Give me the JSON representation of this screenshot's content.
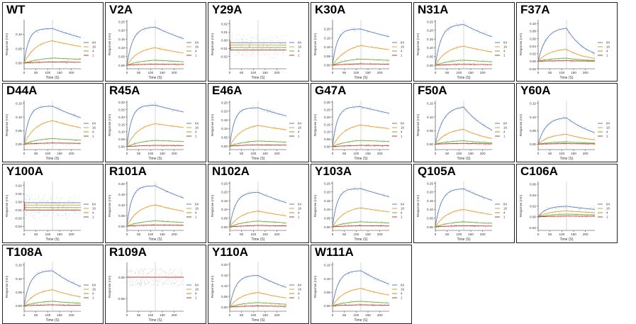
{
  "legend_labels": [
    "64",
    "16",
    "4",
    "1"
  ],
  "x_label": "Time (S)",
  "y_label": "Response (nm)",
  "x_ticks": [
    "0",
    "50",
    "100",
    "150",
    "200"
  ],
  "colors": {
    "c64": "#5b7fbf",
    "c16": "#e0a030",
    "c4": "#6fae3c",
    "c1": "#c0392b",
    "noise": "#999999"
  },
  "chart_data": [
    {
      "type": "line",
      "title": "WT",
      "ylim": [
        -0.02,
        0.15
      ],
      "yticks": [
        "0.00",
        "0.05",
        "0.10"
      ],
      "series": [
        {
          "name": "64",
          "plateau": 0.12,
          "kon": 0.05,
          "koff": 0.0025
        },
        {
          "name": "16",
          "plateau": 0.085,
          "kon": 0.02,
          "koff": 0.0025
        },
        {
          "name": "4",
          "plateau": 0.025,
          "kon": 0.01,
          "koff": 0.0025
        },
        {
          "name": "1",
          "plateau": 0.005,
          "kon": 0.01,
          "koff": 0.0025
        }
      ],
      "xlim": [
        0,
        240
      ]
    },
    {
      "type": "line",
      "title": "V2A",
      "ylim": [
        -0.02,
        0.26
      ],
      "yticks": [
        "0.00",
        "0.05",
        "0.10",
        "0.15",
        "0.20",
        "0.25"
      ],
      "series": [
        {
          "name": "64",
          "plateau": 0.22,
          "kon": 0.04,
          "koff": 0.003
        },
        {
          "name": "16",
          "plateau": 0.11,
          "kon": 0.02,
          "koff": 0.003
        },
        {
          "name": "4",
          "plateau": 0.035,
          "kon": 0.015,
          "koff": 0.003
        },
        {
          "name": "1",
          "plateau": 0.01,
          "kon": 0.01,
          "koff": 0.003
        }
      ],
      "xlim": [
        0,
        240
      ]
    },
    {
      "type": "line",
      "title": "Y29A",
      "ylim": [
        -0.035,
        0.025
      ],
      "yticks": [
        "-0.02",
        "-0.01",
        "0.00",
        "0.01",
        "0.02"
      ],
      "series": [
        {
          "name": "64",
          "plateau": -0.003,
          "kon": 1,
          "koff": 0
        },
        {
          "name": "16",
          "plateau": -0.006,
          "kon": 1,
          "koff": 0
        },
        {
          "name": "4",
          "plateau": -0.009,
          "kon": 1,
          "koff": 0
        },
        {
          "name": "1",
          "plateau": -0.012,
          "kon": 1,
          "koff": 0
        }
      ],
      "xlim": [
        0,
        240
      ]
    },
    {
      "type": "line",
      "title": "K30A",
      "ylim": [
        -0.02,
        0.25
      ],
      "yticks": [
        "0.00",
        "0.05",
        "0.10",
        "0.15",
        "0.20"
      ],
      "series": [
        {
          "name": "64",
          "plateau": 0.2,
          "kon": 0.05,
          "koff": 0.002
        },
        {
          "name": "16",
          "plateau": 0.13,
          "kon": 0.015,
          "koff": 0.002
        },
        {
          "name": "4",
          "plateau": 0.04,
          "kon": 0.015,
          "koff": 0.002
        },
        {
          "name": "1",
          "plateau": 0.01,
          "kon": 0.01,
          "koff": 0.002
        }
      ],
      "xlim": [
        0,
        240
      ]
    },
    {
      "type": "line",
      "title": "N31A",
      "ylim": [
        -0.02,
        0.26
      ],
      "yticks": [
        "0.00",
        "0.05",
        "0.10",
        "0.15",
        "0.20",
        "0.25"
      ],
      "series": [
        {
          "name": "64",
          "plateau": 0.235,
          "kon": 0.04,
          "koff": 0.003
        },
        {
          "name": "16",
          "plateau": 0.12,
          "kon": 0.02,
          "koff": 0.003
        },
        {
          "name": "4",
          "plateau": 0.035,
          "kon": 0.015,
          "koff": 0.003
        },
        {
          "name": "1",
          "plateau": 0.008,
          "kon": 0.01,
          "koff": 0.003
        }
      ],
      "xlim": [
        0,
        240
      ]
    },
    {
      "type": "line",
      "title": "F37A",
      "ylim": [
        -0.02,
        0.11
      ],
      "yticks": [
        "-0.02",
        "0.00",
        "0.02",
        "0.04",
        "0.06",
        "0.08",
        "0.10"
      ],
      "series": [
        {
          "name": "64",
          "plateau": 0.09,
          "kon": 0.03,
          "koff": 0.012
        },
        {
          "name": "16",
          "plateau": 0.035,
          "kon": 0.02,
          "koff": 0.012
        },
        {
          "name": "4",
          "plateau": 0.01,
          "kon": 0.015,
          "koff": 0.012
        },
        {
          "name": "1",
          "plateau": 0.002,
          "kon": 0.01,
          "koff": 0.012
        }
      ],
      "xlim": [
        0,
        240
      ]
    },
    {
      "type": "line",
      "title": "D44A",
      "ylim": [
        -0.02,
        0.16
      ],
      "yticks": [
        "0.00",
        "0.05",
        "0.10",
        "0.15"
      ],
      "series": [
        {
          "name": "64",
          "plateau": 0.14,
          "kon": 0.05,
          "koff": 0.003
        },
        {
          "name": "16",
          "plateau": 0.095,
          "kon": 0.02,
          "koff": 0.003
        },
        {
          "name": "4",
          "plateau": 0.025,
          "kon": 0.015,
          "koff": 0.003
        },
        {
          "name": "1",
          "plateau": 0.006,
          "kon": 0.01,
          "koff": 0.003
        }
      ],
      "xlim": [
        0,
        240
      ]
    },
    {
      "type": "line",
      "title": "R45A",
      "ylim": [
        -0.02,
        0.31
      ],
      "yticks": [
        "0.00",
        "0.05",
        "0.10",
        "0.15",
        "0.20",
        "0.25",
        "0.30"
      ],
      "series": [
        {
          "name": "64",
          "plateau": 0.28,
          "kon": 0.05,
          "koff": 0.0015
        },
        {
          "name": "16",
          "plateau": 0.17,
          "kon": 0.02,
          "koff": 0.0015
        },
        {
          "name": "4",
          "plateau": 0.05,
          "kon": 0.015,
          "koff": 0.0015
        },
        {
          "name": "1",
          "plateau": 0.012,
          "kon": 0.01,
          "koff": 0.0015
        }
      ],
      "xlim": [
        0,
        240
      ]
    },
    {
      "type": "line",
      "title": "E46A",
      "ylim": [
        -0.02,
        0.26
      ],
      "yticks": [
        "0.00",
        "0.05",
        "0.10",
        "0.15",
        "0.20",
        "0.25"
      ],
      "series": [
        {
          "name": "64",
          "plateau": 0.22,
          "kon": 0.05,
          "koff": 0.002
        },
        {
          "name": "16",
          "plateau": 0.13,
          "kon": 0.02,
          "koff": 0.002
        },
        {
          "name": "4",
          "plateau": 0.035,
          "kon": 0.015,
          "koff": 0.002
        },
        {
          "name": "1",
          "plateau": 0.01,
          "kon": 0.01,
          "koff": 0.002
        }
      ],
      "xlim": [
        0,
        240
      ]
    },
    {
      "type": "line",
      "title": "G47A",
      "ylim": [
        -0.02,
        0.31
      ],
      "yticks": [
        "0.00",
        "0.05",
        "0.10",
        "0.15",
        "0.20",
        "0.25",
        "0.30"
      ],
      "series": [
        {
          "name": "64",
          "plateau": 0.27,
          "kon": 0.05,
          "koff": 0.0015
        },
        {
          "name": "16",
          "plateau": 0.16,
          "kon": 0.02,
          "koff": 0.0015
        },
        {
          "name": "4",
          "plateau": 0.05,
          "kon": 0.015,
          "koff": 0.0015
        },
        {
          "name": "1",
          "plateau": 0.012,
          "kon": 0.01,
          "koff": 0.0015
        }
      ],
      "xlim": [
        0,
        240
      ]
    },
    {
      "type": "line",
      "title": "F50A",
      "ylim": [
        -0.02,
        0.16
      ],
      "yticks": [
        "0.00",
        "0.05",
        "0.10",
        "0.15"
      ],
      "series": [
        {
          "name": "64",
          "plateau": 0.14,
          "kon": 0.03,
          "koff": 0.008
        },
        {
          "name": "16",
          "plateau": 0.06,
          "kon": 0.02,
          "koff": 0.008
        },
        {
          "name": "4",
          "plateau": 0.015,
          "kon": 0.015,
          "koff": 0.008
        },
        {
          "name": "1",
          "plateau": 0.004,
          "kon": 0.01,
          "koff": 0.008
        }
      ],
      "xlim": [
        0,
        240
      ]
    },
    {
      "type": "line",
      "title": "Y60A",
      "ylim": [
        -0.02,
        0.16
      ],
      "yticks": [
        "0.00",
        "0.05",
        "0.10",
        "0.15"
      ],
      "series": [
        {
          "name": "64",
          "plateau": 0.1,
          "kon": 0.03,
          "koff": 0.007
        },
        {
          "name": "16",
          "plateau": 0.04,
          "kon": 0.02,
          "koff": 0.007
        },
        {
          "name": "4",
          "plateau": 0.01,
          "kon": 0.015,
          "koff": 0.007
        },
        {
          "name": "1",
          "plateau": 0.003,
          "kon": 0.01,
          "koff": 0.007
        }
      ],
      "xlim": [
        0,
        240
      ]
    },
    {
      "type": "line",
      "title": "Y100A",
      "ylim": [
        -0.035,
        0.025
      ],
      "yticks": [
        "-0.03",
        "-0.02",
        "-0.01",
        "0.00",
        "0.01",
        "0.02"
      ],
      "series": [
        {
          "name": "64",
          "plateau": -0.001,
          "kon": 1,
          "koff": 0
        },
        {
          "name": "16",
          "plateau": -0.004,
          "kon": 1,
          "koff": 0
        },
        {
          "name": "4",
          "plateau": -0.007,
          "kon": 1,
          "koff": 0
        },
        {
          "name": "1",
          "plateau": -0.01,
          "kon": 1,
          "koff": 0
        }
      ],
      "xlim": [
        0,
        240
      ]
    },
    {
      "type": "line",
      "title": "R101A",
      "ylim": [
        -0.02,
        0.21
      ],
      "yticks": [
        "0.00",
        "0.05",
        "0.10",
        "0.15",
        "0.20"
      ],
      "series": [
        {
          "name": "64",
          "plateau": 0.19,
          "kon": 0.05,
          "koff": 0.003
        },
        {
          "name": "16",
          "plateau": 0.11,
          "kon": 0.02,
          "koff": 0.003
        },
        {
          "name": "4",
          "plateau": 0.03,
          "kon": 0.015,
          "koff": 0.003
        },
        {
          "name": "1",
          "plateau": 0.008,
          "kon": 0.01,
          "koff": 0.003
        }
      ],
      "xlim": [
        0,
        240
      ]
    },
    {
      "type": "line",
      "title": "N102A",
      "ylim": [
        -0.02,
        0.26
      ],
      "yticks": [
        "0.00",
        "0.05",
        "0.10",
        "0.15",
        "0.20",
        "0.25"
      ],
      "series": [
        {
          "name": "64",
          "plateau": 0.2,
          "kon": 0.04,
          "koff": 0.003
        },
        {
          "name": "16",
          "plateau": 0.1,
          "kon": 0.02,
          "koff": 0.003
        },
        {
          "name": "4",
          "plateau": 0.04,
          "kon": 0.015,
          "koff": 0.003
        },
        {
          "name": "1",
          "plateau": 0.012,
          "kon": 0.01,
          "koff": 0.003
        }
      ],
      "xlim": [
        0,
        240
      ]
    },
    {
      "type": "line",
      "title": "Y103A",
      "ylim": [
        -0.02,
        0.26
      ],
      "yticks": [
        "0.00",
        "0.05",
        "0.10",
        "0.15",
        "0.20",
        "0.25"
      ],
      "series": [
        {
          "name": "64",
          "plateau": 0.22,
          "kon": 0.05,
          "koff": 0.002
        },
        {
          "name": "16",
          "plateau": 0.12,
          "kon": 0.02,
          "koff": 0.002
        },
        {
          "name": "4",
          "plateau": 0.035,
          "kon": 0.015,
          "koff": 0.002
        },
        {
          "name": "1",
          "plateau": 0.01,
          "kon": 0.01,
          "koff": 0.002
        }
      ],
      "xlim": [
        0,
        240
      ]
    },
    {
      "type": "line",
      "title": "Q105A",
      "ylim": [
        -0.02,
        0.26
      ],
      "yticks": [
        "0.00",
        "0.05",
        "0.10",
        "0.15",
        "0.20",
        "0.25"
      ],
      "series": [
        {
          "name": "64",
          "plateau": 0.22,
          "kon": 0.04,
          "koff": 0.003
        },
        {
          "name": "16",
          "plateau": 0.11,
          "kon": 0.02,
          "koff": 0.003
        },
        {
          "name": "4",
          "plateau": 0.035,
          "kon": 0.015,
          "koff": 0.003
        },
        {
          "name": "1",
          "plateau": 0.01,
          "kon": 0.01,
          "koff": 0.003
        }
      ],
      "xlim": [
        0,
        240
      ]
    },
    {
      "type": "line",
      "title": "C106A",
      "ylim": [
        -0.025,
        0.065
      ],
      "yticks": [
        "-0.02",
        "0.00",
        "0.02",
        "0.04",
        "0.06"
      ],
      "series": [
        {
          "name": "64",
          "plateau": 0.02,
          "kon": 0.03,
          "koff": 0.003
        },
        {
          "name": "16",
          "plateau": 0.012,
          "kon": 0.02,
          "koff": 0.003
        },
        {
          "name": "4",
          "plateau": 0.006,
          "kon": 0.015,
          "koff": 0.003
        },
        {
          "name": "1",
          "plateau": 0.002,
          "kon": 0.01,
          "koff": 0.003
        }
      ],
      "xlim": [
        0,
        240
      ]
    },
    {
      "type": "line",
      "title": "T108A",
      "ylim": [
        -0.02,
        0.16
      ],
      "yticks": [
        "0.00",
        "0.05",
        "0.10",
        "0.15"
      ],
      "series": [
        {
          "name": "64",
          "plateau": 0.13,
          "kon": 0.04,
          "koff": 0.005
        },
        {
          "name": "16",
          "plateau": 0.065,
          "kon": 0.02,
          "koff": 0.005
        },
        {
          "name": "4",
          "plateau": 0.02,
          "kon": 0.015,
          "koff": 0.005
        },
        {
          "name": "1",
          "plateau": 0.005,
          "kon": 0.01,
          "koff": 0.005
        }
      ],
      "xlim": [
        0,
        240
      ]
    },
    {
      "type": "line",
      "title": "R109A",
      "ylim": [
        -0.08,
        0.035
      ],
      "yticks": [
        "-0.05",
        "0.00"
      ],
      "series": [
        {
          "name": "64",
          "plateau": 0.0,
          "kon": 1,
          "koff": 0
        },
        {
          "name": "16",
          "plateau": 0.0,
          "kon": 1,
          "koff": 0
        },
        {
          "name": "4",
          "plateau": 0.0,
          "kon": 1,
          "koff": 0
        },
        {
          "name": "1",
          "plateau": 0.0,
          "kon": 1,
          "koff": 0
        }
      ],
      "xlim": [
        0,
        240
      ]
    },
    {
      "type": "line",
      "title": "Y110A",
      "ylim": [
        -0.02,
        0.21
      ],
      "yticks": [
        "0.00",
        "0.05",
        "0.10",
        "0.15",
        "0.20"
      ],
      "series": [
        {
          "name": "64",
          "plateau": 0.15,
          "kon": 0.04,
          "koff": 0.004
        },
        {
          "name": "16",
          "plateau": 0.075,
          "kon": 0.02,
          "koff": 0.004
        },
        {
          "name": "4",
          "plateau": 0.025,
          "kon": 0.015,
          "koff": 0.004
        },
        {
          "name": "1",
          "plateau": 0.007,
          "kon": 0.01,
          "koff": 0.004
        }
      ],
      "xlim": [
        0,
        240
      ]
    },
    {
      "type": "line",
      "title": "W111A",
      "ylim": [
        -0.02,
        0.16
      ],
      "yticks": [
        "0.00",
        "0.05",
        "0.10",
        "0.15"
      ],
      "series": [
        {
          "name": "64",
          "plateau": 0.13,
          "kon": 0.04,
          "koff": 0.004
        },
        {
          "name": "16",
          "plateau": 0.07,
          "kon": 0.02,
          "koff": 0.004
        },
        {
          "name": "4",
          "plateau": 0.02,
          "kon": 0.015,
          "koff": 0.004
        },
        {
          "name": "1",
          "plateau": 0.005,
          "kon": 0.01,
          "koff": 0.004
        }
      ],
      "xlim": [
        0,
        240
      ]
    }
  ]
}
